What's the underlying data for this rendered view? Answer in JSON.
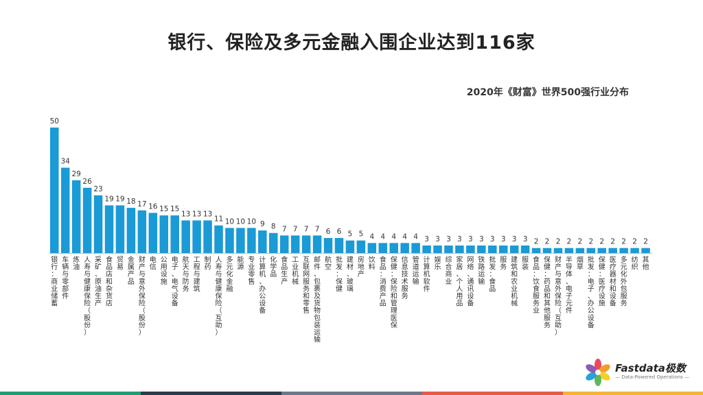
{
  "title": "银行、保险及多元金融入围企业达到116家",
  "subtitle": "2020年《财富》世界500强行业分布",
  "brand": {
    "name": "Fastdata极数",
    "tagline": "— Data-Powered Operations —"
  },
  "colors": {
    "bar": "#1a9ad6",
    "bottom_bar": [
      "#1f9e74",
      "#2a3b4c",
      "#6a7a89",
      "#e65a4b",
      "#f2b632"
    ]
  },
  "chart_data": {
    "type": "bar",
    "title": "2020年《财富》世界500强行业分布",
    "xlabel": "",
    "ylabel": "",
    "grid": false,
    "categories": [
      "银行：商业储蓄",
      "车辆与零部件",
      "炼油",
      "人寿与健康保险（股份）",
      "采矿、原油生产",
      "食品店和杂货店",
      "贸易",
      "金属产品",
      "财产与意外保险（股份）",
      "电信",
      "公用设施",
      "电子、电气设备",
      "航天与防务",
      "工程与建筑",
      "制药",
      "人寿与健康保险（互助）",
      "多元化金融",
      "能源",
      "专业零售",
      "计算机、办公设备",
      "化学品",
      "食品生产",
      "工业机械",
      "互联网服务和零售",
      "邮件、包裹及货物包装运输",
      "航空",
      "批发：保健",
      "建材、玻璃",
      "房地产",
      "饮料",
      "食品：消费产品",
      "保健：保险和管理医保",
      "信息技术服务",
      "管道运输",
      "计算机软件",
      "娱乐",
      "综合商业",
      "家居、个人用品",
      "网络、通讯设备",
      "铁路运输",
      "批发：食品",
      "服务",
      "建筑和农业机械",
      "服装",
      "食品：饮食服务业",
      "保健：药品和其他服务",
      "财产与意外保险（互助）",
      "半导体、电子元件",
      "烟草",
      "批发：电子、办公设备",
      "保健：医疗设施",
      "医疗器材和设备",
      "多元化外包服务",
      "纺织",
      "其他"
    ],
    "values": [
      50,
      34,
      29,
      26,
      23,
      19,
      19,
      18,
      17,
      16,
      15,
      15,
      13,
      13,
      13,
      11,
      10,
      10,
      10,
      9,
      8,
      7,
      7,
      7,
      7,
      6,
      6,
      5,
      5,
      4,
      4,
      4,
      4,
      4,
      3,
      3,
      3,
      3,
      3,
      3,
      3,
      3,
      3,
      3,
      2,
      2,
      2,
      2,
      2,
      2,
      2,
      2,
      2,
      2,
      2
    ],
    "ylim": [
      0,
      50
    ]
  }
}
